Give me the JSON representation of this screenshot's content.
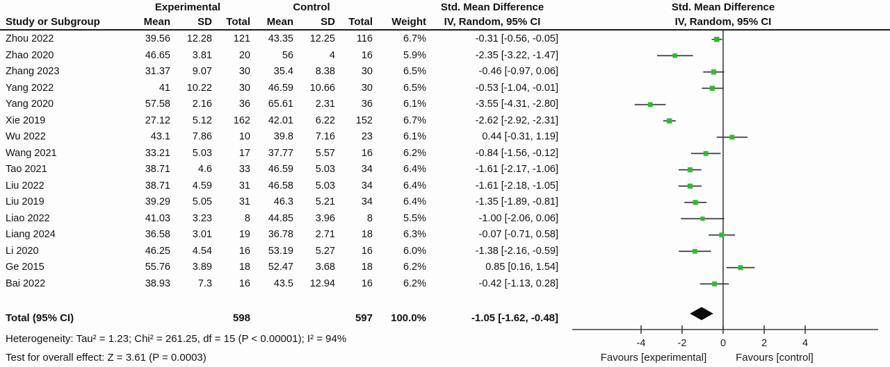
{
  "meta": {
    "bg": "#fdfdfd",
    "marker_color": "#2ebc2e",
    "line_color": "#3d3d3d",
    "diamond_color": "#0a0a0a"
  },
  "header": {
    "group1": "Experimental",
    "group2": "Control",
    "effect_title": "Std. Mean Difference",
    "effect_method": "IV, Random, 95% CI",
    "plot_title": "Std. Mean Difference",
    "plot_method": "IV, Random, 95% CI",
    "columns": {
      "study": "Study or Subgroup",
      "mean": "Mean",
      "sd": "SD",
      "total": "Total",
      "weight": "Weight"
    }
  },
  "chart_data": {
    "type": "forest",
    "effect_measure": "Std. Mean Difference",
    "model": "IV, Random, 95% CI",
    "axis": {
      "ticks": [
        -4,
        -2,
        0,
        2,
        4
      ],
      "min": -7.3,
      "max": 7.5,
      "zero_line": 0
    },
    "favours_left": "Favours [experimental]",
    "favours_right": "Favours [control]",
    "studies": [
      {
        "study": "Zhou 2022",
        "mean1": "39.56",
        "sd1": "12.28",
        "n1": "121",
        "mean2": "43.35",
        "sd2": "12.25",
        "n2": "116",
        "weight": "6.7%",
        "ci_text": "-0.31 [-0.56, -0.05]",
        "est": -0.31,
        "lo": -0.56,
        "hi": -0.05,
        "w": 6.7
      },
      {
        "study": "Zhao 2020",
        "mean1": "46.65",
        "sd1": "3.81",
        "n1": "20",
        "mean2": "56",
        "sd2": "4",
        "n2": "16",
        "weight": "5.9%",
        "ci_text": "-2.35 [-3.22, -1.47]",
        "est": -2.35,
        "lo": -3.22,
        "hi": -1.47,
        "w": 5.9
      },
      {
        "study": "Zhang 2023",
        "mean1": "31.37",
        "sd1": "9.07",
        "n1": "30",
        "mean2": "35.4",
        "sd2": "8.38",
        "n2": "30",
        "weight": "6.5%",
        "ci_text": "-0.46 [-0.97, 0.06]",
        "est": -0.46,
        "lo": -0.97,
        "hi": 0.06,
        "w": 6.5
      },
      {
        "study": "Yang 2022",
        "mean1": "41",
        "sd1": "10.22",
        "n1": "30",
        "mean2": "46.59",
        "sd2": "10.66",
        "n2": "30",
        "weight": "6.5%",
        "ci_text": "-0.53 [-1.04, -0.01]",
        "est": -0.53,
        "lo": -1.04,
        "hi": -0.01,
        "w": 6.5
      },
      {
        "study": "Yang 2020",
        "mean1": "57.58",
        "sd1": "2.16",
        "n1": "36",
        "mean2": "65.61",
        "sd2": "2.31",
        "n2": "36",
        "weight": "6.1%",
        "ci_text": "-3.55 [-4.31, -2.80]",
        "est": -3.55,
        "lo": -4.31,
        "hi": -2.8,
        "w": 6.1
      },
      {
        "study": "Xie 2019",
        "mean1": "27.12",
        "sd1": "5.12",
        "n1": "162",
        "mean2": "42.01",
        "sd2": "6.22",
        "n2": "152",
        "weight": "6.7%",
        "ci_text": "-2.62 [-2.92, -2.31]",
        "est": -2.62,
        "lo": -2.92,
        "hi": -2.31,
        "w": 6.7
      },
      {
        "study": "Wu 2022",
        "mean1": "43.1",
        "sd1": "7.86",
        "n1": "10",
        "mean2": "39.8",
        "sd2": "7.16",
        "n2": "23",
        "weight": "6.1%",
        "ci_text": "0.44 [-0.31, 1.19]",
        "est": 0.44,
        "lo": -0.31,
        "hi": 1.19,
        "w": 6.1
      },
      {
        "study": "Wang 2021",
        "mean1": "33.21",
        "sd1": "5.03",
        "n1": "17",
        "mean2": "37.77",
        "sd2": "5.57",
        "n2": "16",
        "weight": "6.2%",
        "ci_text": "-0.84 [-1.56, -0.12]",
        "est": -0.84,
        "lo": -1.56,
        "hi": -0.12,
        "w": 6.2
      },
      {
        "study": "Tao 2021",
        "mean1": "38.71",
        "sd1": "4.6",
        "n1": "33",
        "mean2": "46.59",
        "sd2": "5.03",
        "n2": "34",
        "weight": "6.4%",
        "ci_text": "-1.61 [-2.17, -1.06]",
        "est": -1.61,
        "lo": -2.17,
        "hi": -1.06,
        "w": 6.4
      },
      {
        "study": "Liu 2022",
        "mean1": "38.71",
        "sd1": "4.59",
        "n1": "31",
        "mean2": "46.58",
        "sd2": "5.03",
        "n2": "34",
        "weight": "6.4%",
        "ci_text": "-1.61 [-2.18, -1.05]",
        "est": -1.61,
        "lo": -2.18,
        "hi": -1.05,
        "w": 6.4
      },
      {
        "study": "Liu 2019",
        "mean1": "39.29",
        "sd1": "5.05",
        "n1": "31",
        "mean2": "46.3",
        "sd2": "5.21",
        "n2": "34",
        "weight": "6.4%",
        "ci_text": "-1.35 [-1.89, -0.81]",
        "est": -1.35,
        "lo": -1.89,
        "hi": -0.81,
        "w": 6.4
      },
      {
        "study": "Liao 2022",
        "mean1": "41.03",
        "sd1": "3.23",
        "n1": "8",
        "mean2": "44.85",
        "sd2": "3.96",
        "n2": "8",
        "weight": "5.5%",
        "ci_text": "-1.00 [-2.06, 0.06]",
        "est": -1.0,
        "lo": -2.06,
        "hi": 0.06,
        "w": 5.5
      },
      {
        "study": "Liang 2024",
        "mean1": "36.58",
        "sd1": "3.01",
        "n1": "19",
        "mean2": "36.78",
        "sd2": "2.71",
        "n2": "18",
        "weight": "6.3%",
        "ci_text": "-0.07 [-0.71, 0.58]",
        "est": -0.07,
        "lo": -0.71,
        "hi": 0.58,
        "w": 6.3
      },
      {
        "study": "Li 2020",
        "mean1": "46.25",
        "sd1": "4.54",
        "n1": "16",
        "mean2": "53.19",
        "sd2": "5.27",
        "n2": "16",
        "weight": "6.0%",
        "ci_text": "-1.38 [-2.16, -0.59]",
        "est": -1.38,
        "lo": -2.16,
        "hi": -0.59,
        "w": 6.0
      },
      {
        "study": "Ge 2015",
        "mean1": "55.76",
        "sd1": "3.89",
        "n1": "18",
        "mean2": "52.47",
        "sd2": "3.68",
        "n2": "18",
        "weight": "6.2%",
        "ci_text": "0.85 [0.16, 1.54]",
        "est": 0.85,
        "lo": 0.16,
        "hi": 1.54,
        "w": 6.2
      },
      {
        "study": "Bai 2022",
        "mean1": "38.93",
        "sd1": "7.3",
        "n1": "16",
        "mean2": "43.5",
        "sd2": "12.94",
        "n2": "16",
        "weight": "6.2%",
        "ci_text": "-0.42 [-1.13, 0.28]",
        "est": -0.42,
        "lo": -1.13,
        "hi": 0.28,
        "w": 6.2
      }
    ],
    "total": {
      "label": "Total (95% CI)",
      "n1": "598",
      "n2": "597",
      "weight": "100.0%",
      "ci_text": "-1.05 [-1.62, -0.48]",
      "est": -1.05,
      "lo": -1.62,
      "hi": -0.48
    },
    "heterogeneity": "Heterogeneity: Tau² = 1.23; Chi² = 261.25, df = 15 (P < 0.00001); I² = 94%",
    "overall_effect": "Test for overall effect: Z = 3.61 (P = 0.0003)"
  }
}
